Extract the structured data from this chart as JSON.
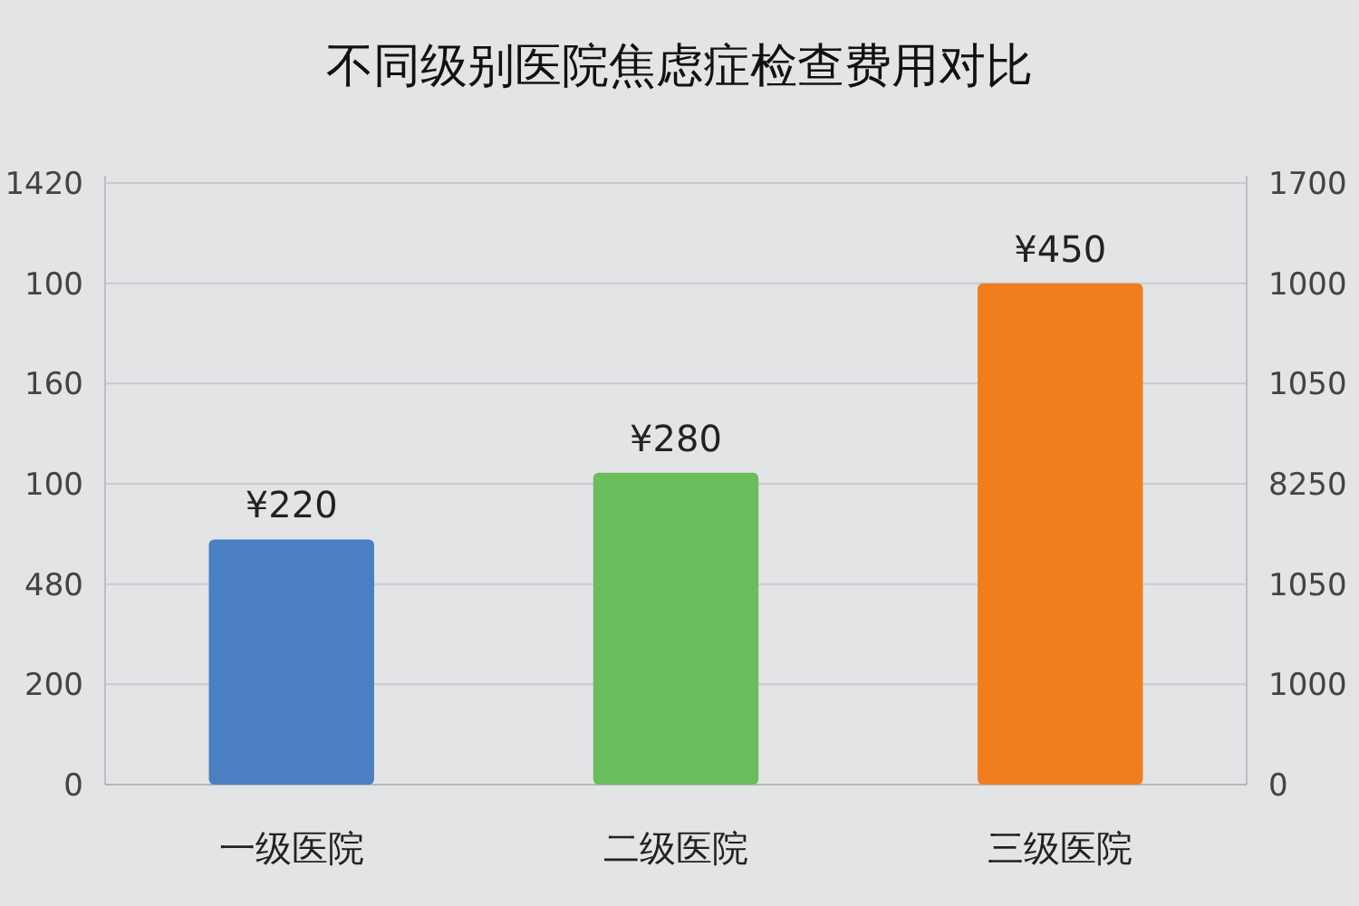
{
  "chart_data": {
    "type": "bar",
    "title": "不同级别医院焦虑症检查费用对比",
    "categories": [
      "一级医院",
      "二级医院",
      "三级医院"
    ],
    "values": [
      220,
      280,
      450
    ],
    "colors": [
      "#4a7fc1",
      "#69bd5c",
      "#f07e1e"
    ],
    "value_labels": [
      "¥220",
      "¥280",
      "¥450"
    ],
    "annotations": [
      "0",
      "200",
      "480",
      "100",
      "160",
      "100",
      "1420",
      "0",
      "1000",
      "1050",
      "8250",
      "1050",
      "1000",
      "1700"
    ],
    "grid": "y"
  }
}
